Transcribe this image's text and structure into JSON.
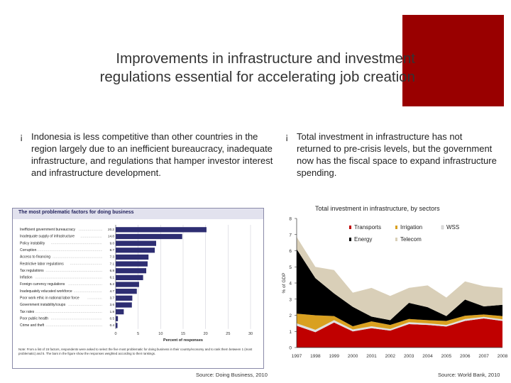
{
  "slide": {
    "title_line1": "Improvements in infrastructure and investment",
    "title_line2": "regulations essential for accelerating job creation",
    "accent_color": "#990000",
    "bullet_marker": "¡",
    "bullet1": "Indonesia is less competitive than other countries in the region largely due to an inefficient bureaucracy, inadequate infrastructure, and regulations that hamper investor interest and infrastructure development.",
    "bullet2": "Total investment in infrastructure has not returned to pre-crisis levels, but the government now has the fiscal space to expand infrastructure spending.",
    "source_left": "Source: Doing Business, 2010",
    "source_right": "Source: World Bank, 2010"
  },
  "chart_data": [
    {
      "type": "bar",
      "orientation": "horizontal",
      "title": "The most problematic factors for doing business",
      "xlabel": "Percent of responses",
      "categories": [
        "Inefficient government bureaucracy",
        "Inadequate supply of infrastructure",
        "Policy instability",
        "Corruption",
        "Access to financing",
        "Restrictive labor regulations",
        "Tax regulations",
        "Inflation",
        "Foreign currency regulations",
        "Inadequately educated workforce",
        "Poor work ethic in national labor force",
        "Government instability/coups",
        "Tax rates",
        "Poor public health",
        "Crime and theft"
      ],
      "values": [
        20.2,
        14.8,
        9.0,
        8.7,
        7.3,
        7.1,
        6.8,
        6.1,
        5.2,
        4.7,
        3.7,
        3.6,
        1.8,
        0.5,
        0.4
      ],
      "value_labels": [
        "20.2",
        "14.8",
        "9.0",
        "8.7",
        "7.3",
        "7.1",
        "6.8",
        "6.1",
        "5.2",
        "4.7",
        "3.7",
        "3.6",
        "1.8",
        "0.5",
        "0.4"
      ],
      "xticks": [
        "0",
        "5",
        "10",
        "15",
        "20",
        "25",
        "30"
      ],
      "xlim": [
        0,
        30
      ],
      "bar_color": "#2e2e72",
      "note": "Note: From a list of 15 factors, respondents were asked to select the five most problematic for doing business in their country/economy and to rank them between 1 (most problematic) and 5. The bars in the figure show the responses weighted according to their rankings."
    },
    {
      "type": "area",
      "stacked": true,
      "title": "Total investment in infrastructure, by sectors",
      "ylabel": "% of GDP",
      "x": [
        "1997",
        "1998",
        "1999",
        "2000",
        "2001",
        "2002",
        "2003",
        "2004",
        "2005",
        "2006",
        "2007",
        "2008"
      ],
      "yticks": [
        "0",
        "1",
        "2",
        "3",
        "4",
        "5",
        "6",
        "7",
        "8"
      ],
      "ylim": [
        0,
        8
      ],
      "legend_position": "top",
      "series": [
        {
          "name": "Transports",
          "color": "#c00000",
          "values": [
            1.35,
            0.95,
            1.55,
            1.0,
            1.2,
            1.05,
            1.45,
            1.4,
            1.3,
            1.65,
            1.8,
            1.65
          ]
        },
        {
          "name": "WSS",
          "color": "#e0e0e0",
          "values": [
            0.15,
            0.15,
            0.15,
            0.12,
            0.12,
            0.1,
            0.12,
            0.1,
            0.1,
            0.12,
            0.1,
            0.1
          ]
        },
        {
          "name": "Irrigation",
          "color": "#d9a020",
          "values": [
            0.6,
            0.9,
            0.25,
            0.2,
            0.3,
            0.25,
            0.2,
            0.2,
            0.25,
            0.2,
            0.15,
            0.2
          ]
        },
        {
          "name": "Energy",
          "color": "#000000",
          "values": [
            4.0,
            2.3,
            1.4,
            1.2,
            0.3,
            0.3,
            1.0,
            0.8,
            0.3,
            1.0,
            0.5,
            0.7
          ]
        },
        {
          "name": "Telecom",
          "color": "#d9cfb8",
          "values": [
            0.75,
            0.7,
            1.45,
            0.88,
            1.78,
            1.5,
            0.93,
            1.35,
            1.15,
            1.13,
            1.25,
            1.05
          ]
        }
      ]
    }
  ]
}
